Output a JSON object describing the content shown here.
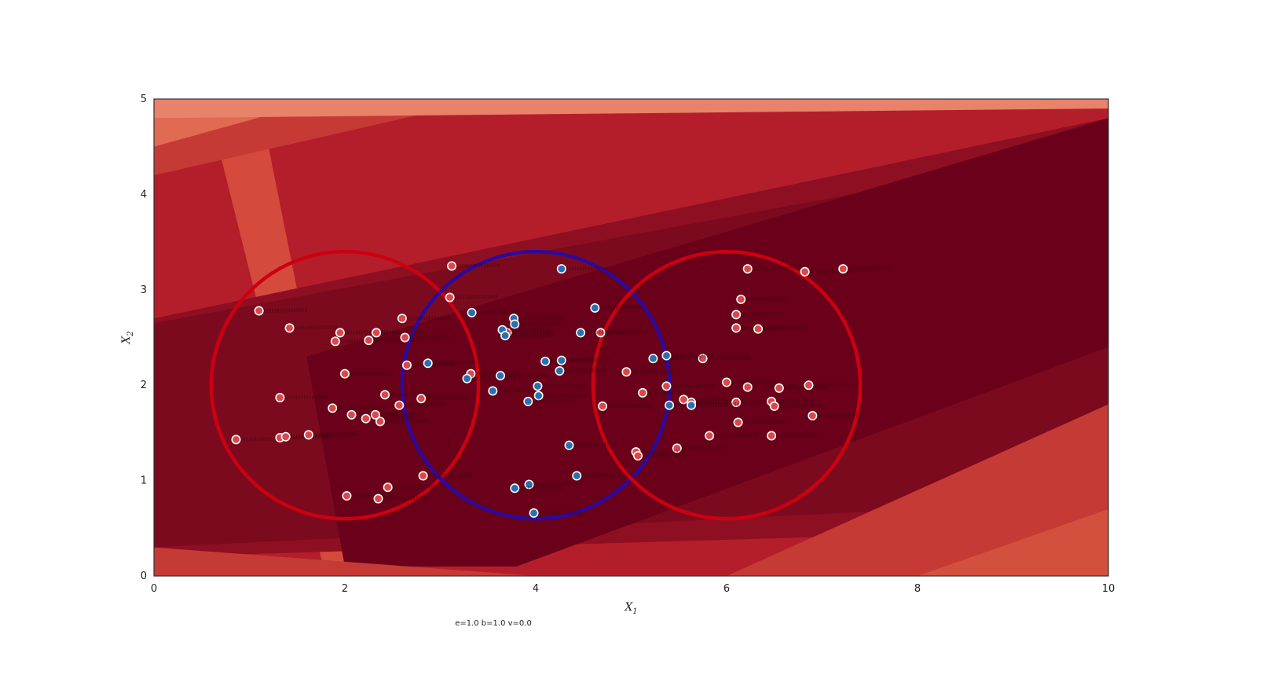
{
  "chart_data": {
    "type": "scatter",
    "title": "",
    "xlabel": "X",
    "xlabel_sub": "1",
    "ylabel": "X",
    "ylabel_sub": "2",
    "xlim": [
      0,
      10
    ],
    "ylim": [
      0,
      5
    ],
    "xticks": [
      0,
      2,
      4,
      6,
      8,
      10
    ],
    "yticks": [
      0,
      1,
      2,
      3,
      4,
      5
    ],
    "grid": false,
    "legend": "none",
    "footnote": "e=1.0 b=1.0 v=0.0",
    "background_bands": [
      {
        "points": [
          [
            0,
            0
          ],
          [
            10,
            0
          ],
          [
            10,
            5
          ],
          [
            0,
            5
          ]
        ],
        "color": "#b41e2a"
      },
      {
        "points": [
          [
            0.55,
            5
          ],
          [
            1.1,
            5
          ],
          [
            2.1,
            0
          ],
          [
            1.8,
            0
          ]
        ],
        "color": "#d44a3c"
      },
      {
        "points": [
          [
            0,
            4.2
          ],
          [
            3.5,
            5
          ],
          [
            0,
            5
          ]
        ],
        "color": "#c63a36"
      },
      {
        "points": [
          [
            0,
            4.5
          ],
          [
            1.8,
            5
          ],
          [
            0,
            5
          ]
        ],
        "color": "#e06a52"
      },
      {
        "points": [
          [
            0,
            4.8
          ],
          [
            10,
            4.9
          ],
          [
            10,
            5
          ],
          [
            0,
            5
          ]
        ],
        "color": "#e8826a"
      },
      {
        "points": [
          [
            0,
            2.7
          ],
          [
            10,
            4.8
          ],
          [
            10,
            0.5
          ],
          [
            0,
            0.2
          ]
        ],
        "color": "#8e0f22"
      },
      {
        "points": [
          [
            0,
            2.65
          ],
          [
            10,
            4.5
          ],
          [
            10,
            0.8
          ],
          [
            0,
            0.3
          ]
        ],
        "color": "#7c0a1e"
      },
      {
        "points": [
          [
            1.6,
            2.3
          ],
          [
            10,
            4.8
          ],
          [
            10,
            2.4
          ],
          [
            3.8,
            0.1
          ],
          [
            2.0,
            0.1
          ]
        ],
        "color": "#6a0019"
      },
      {
        "points": [
          [
            0,
            0
          ],
          [
            4,
            0
          ],
          [
            0,
            0.3
          ]
        ],
        "color": "#c63a36"
      },
      {
        "points": [
          [
            6,
            0
          ],
          [
            10,
            0
          ],
          [
            10,
            1.8
          ]
        ],
        "color": "#c63a36"
      },
      {
        "points": [
          [
            8,
            0
          ],
          [
            10,
            0
          ],
          [
            10,
            0.7
          ]
        ],
        "color": "#d4503e"
      }
    ],
    "circles": [
      {
        "cx": 2.0,
        "cy": 2.0,
        "r": 1.4,
        "color": "#cc0011"
      },
      {
        "cx": 4.0,
        "cy": 2.0,
        "r": 1.4,
        "color": "#2a0aa0"
      },
      {
        "cx": 6.0,
        "cy": 2.0,
        "r": 1.4,
        "color": "#cc0011"
      }
    ],
    "series": [
      {
        "class": "outer",
        "color": "#d9484a",
        "points": [
          [
            1.1,
            2.78
          ],
          [
            1.42,
            2.6
          ],
          [
            1.95,
            2.55
          ],
          [
            1.9,
            2.46
          ],
          [
            2.25,
            2.47
          ],
          [
            2.33,
            2.55
          ],
          [
            2.6,
            2.7
          ],
          [
            2.63,
            2.5
          ],
          [
            2.0,
            2.12
          ],
          [
            2.65,
            2.21
          ],
          [
            1.32,
            1.87
          ],
          [
            1.87,
            1.76
          ],
          [
            2.07,
            1.69
          ],
          [
            2.22,
            1.65
          ],
          [
            2.32,
            1.69
          ],
          [
            2.37,
            1.62
          ],
          [
            2.42,
            1.9
          ],
          [
            2.57,
            1.79
          ],
          [
            2.8,
            1.86
          ],
          [
            0.86,
            1.43
          ],
          [
            1.32,
            1.45
          ],
          [
            1.38,
            1.46
          ],
          [
            1.62,
            1.48
          ],
          [
            2.02,
            0.84
          ],
          [
            2.35,
            0.81
          ],
          [
            2.45,
            0.93
          ],
          [
            2.82,
            1.05
          ],
          [
            3.12,
            3.25
          ],
          [
            3.1,
            2.92
          ],
          [
            3.7,
            2.55
          ],
          [
            3.32,
            2.12
          ],
          [
            6.22,
            3.22
          ],
          [
            6.82,
            3.19
          ],
          [
            7.22,
            3.22
          ],
          [
            6.15,
            2.9
          ],
          [
            6.1,
            2.74
          ],
          [
            6.1,
            2.6
          ],
          [
            6.33,
            2.59
          ],
          [
            5.75,
            2.28
          ],
          [
            4.68,
            2.55
          ],
          [
            4.95,
            2.14
          ],
          [
            5.37,
            1.99
          ],
          [
            5.12,
            1.92
          ],
          [
            5.55,
            1.85
          ],
          [
            5.63,
            1.82
          ],
          [
            6.0,
            2.03
          ],
          [
            6.22,
            1.98
          ],
          [
            6.55,
            1.97
          ],
          [
            6.86,
            2.0
          ],
          [
            6.1,
            1.82
          ],
          [
            6.47,
            1.83
          ],
          [
            6.5,
            1.78
          ],
          [
            6.9,
            1.68
          ],
          [
            6.12,
            1.61
          ],
          [
            5.82,
            1.47
          ],
          [
            6.47,
            1.47
          ],
          [
            5.48,
            1.34
          ],
          [
            5.05,
            1.3
          ],
          [
            5.07,
            1.26
          ],
          [
            4.7,
            1.78
          ]
        ]
      },
      {
        "class": "inner",
        "color": "#2a6fb0",
        "points": [
          [
            4.27,
            3.22
          ],
          [
            4.62,
            2.81
          ],
          [
            3.33,
            2.76
          ],
          [
            3.77,
            2.7
          ],
          [
            3.78,
            2.64
          ],
          [
            3.65,
            2.58
          ],
          [
            3.68,
            2.52
          ],
          [
            4.47,
            2.55
          ],
          [
            2.87,
            2.23
          ],
          [
            4.1,
            2.25
          ],
          [
            4.27,
            2.26
          ],
          [
            4.25,
            2.15
          ],
          [
            5.23,
            2.28
          ],
          [
            5.37,
            2.31
          ],
          [
            3.28,
            2.07
          ],
          [
            3.63,
            2.1
          ],
          [
            3.55,
            1.94
          ],
          [
            4.02,
            1.99
          ],
          [
            4.03,
            1.89
          ],
          [
            3.92,
            1.83
          ],
          [
            5.4,
            1.79
          ],
          [
            4.35,
            1.37
          ],
          [
            4.43,
            1.05
          ],
          [
            3.93,
            0.96
          ],
          [
            3.78,
            0.92
          ],
          [
            3.98,
            0.66
          ],
          [
            5.63,
            1.79
          ]
        ]
      }
    ]
  }
}
